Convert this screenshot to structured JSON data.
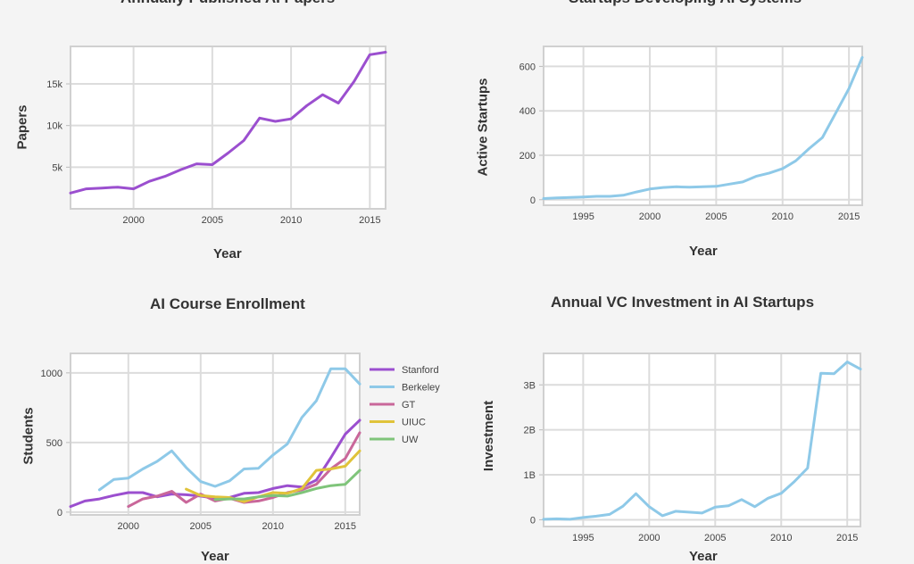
{
  "chart_data": [
    {
      "id": "papers",
      "type": "line",
      "title": "Annually Published AI Papers",
      "xlabel": "Year",
      "ylabel": "Papers",
      "xlim": [
        1996,
        2016
      ],
      "ylim": [
        0,
        19500
      ],
      "xticks": [
        2000,
        2005,
        2010,
        2015
      ],
      "xtick_labels": [
        "2000",
        "2005",
        "2010",
        "2015"
      ],
      "yticks": [
        5000,
        10000,
        15000
      ],
      "ytick_labels": [
        "5k",
        "10k",
        "15k"
      ],
      "x": [
        1996,
        1997,
        1998,
        1999,
        2000,
        2001,
        2002,
        2003,
        2004,
        2005,
        2006,
        2007,
        2008,
        2009,
        2010,
        2011,
        2012,
        2013,
        2014,
        2015,
        2016
      ],
      "series": [
        {
          "color": "#9b4fcf",
          "values": [
            1900,
            2400,
            2500,
            2600,
            2400,
            3300,
            3900,
            4700,
            5400,
            5300,
            6700,
            8200,
            10900,
            10500,
            10800,
            12400,
            13700,
            12700,
            15300,
            18500,
            18800
          ]
        }
      ]
    },
    {
      "id": "startups",
      "type": "line",
      "title": "Startups Developing AI Systems",
      "xlabel": "Year",
      "ylabel": "Active Startups",
      "xlim": [
        1992,
        2016
      ],
      "ylim": [
        -25,
        690
      ],
      "xticks": [
        1995,
        2000,
        2005,
        2010,
        2015
      ],
      "xtick_labels": [
        "1995",
        "2000",
        "2005",
        "2010",
        "2015"
      ],
      "yticks": [
        0,
        200,
        400,
        600
      ],
      "ytick_labels": [
        "0",
        "200",
        "400",
        "600"
      ],
      "x": [
        1992,
        1993,
        1994,
        1995,
        1996,
        1997,
        1998,
        1999,
        2000,
        2001,
        2002,
        2003,
        2004,
        2005,
        2006,
        2007,
        2008,
        2009,
        2010,
        2011,
        2012,
        2013,
        2014,
        2015,
        2016
      ],
      "series": [
        {
          "color": "#8ec9e8",
          "values": [
            5,
            8,
            10,
            12,
            15,
            15,
            20,
            35,
            48,
            55,
            58,
            56,
            58,
            60,
            70,
            80,
            105,
            120,
            140,
            175,
            230,
            280,
            390,
            500,
            640
          ]
        }
      ]
    },
    {
      "id": "enrollment",
      "type": "line",
      "title": "AI Course Enrollment",
      "xlabel": "Year",
      "ylabel": "Students",
      "xlim": [
        1996,
        2016
      ],
      "ylim": [
        -20,
        1140
      ],
      "xticks": [
        2000,
        2005,
        2010,
        2015
      ],
      "xtick_labels": [
        "2000",
        "2005",
        "2010",
        "2015"
      ],
      "yticks": [
        0,
        500,
        1000
      ],
      "ytick_labels": [
        "0",
        "500",
        "1000"
      ],
      "legend_position": "right",
      "series": [
        {
          "name": "Stanford",
          "color": "#9b4fcf",
          "x": [
            1996,
            1997,
            1998,
            1999,
            2000,
            2001,
            2002,
            2003,
            2004,
            2005,
            2006,
            2007,
            2008,
            2009,
            2010,
            2011,
            2012,
            2013,
            2014,
            2015,
            2016
          ],
          "values": [
            40,
            80,
            95,
            120,
            140,
            140,
            110,
            130,
            125,
            115,
            100,
            105,
            135,
            140,
            170,
            190,
            180,
            230,
            390,
            560,
            660
          ]
        },
        {
          "name": "Berkeley",
          "color": "#8ec9e8",
          "x": [
            1998,
            1999,
            2000,
            2001,
            2002,
            2003,
            2004,
            2005,
            2006,
            2007,
            2008,
            2009,
            2010,
            2011,
            2012,
            2013,
            2014,
            2015,
            2016
          ],
          "values": [
            160,
            235,
            245,
            310,
            365,
            440,
            320,
            220,
            185,
            225,
            310,
            315,
            410,
            490,
            680,
            800,
            1030,
            1030,
            920
          ]
        },
        {
          "name": "GT",
          "color": "#c9679a",
          "x": [
            2000,
            2001,
            2002,
            2003,
            2004,
            2005,
            2006,
            2007,
            2008,
            2009,
            2010,
            2011,
            2012,
            2013,
            2014,
            2015,
            2016
          ],
          "values": [
            40,
            95,
            115,
            150,
            70,
            130,
            80,
            100,
            70,
            80,
            105,
            140,
            160,
            200,
            310,
            385,
            570
          ]
        },
        {
          "name": "UIUC",
          "color": "#e0c33a",
          "x": [
            2004,
            2005,
            2006,
            2007,
            2008,
            2009,
            2010,
            2011,
            2012,
            2013,
            2014,
            2015,
            2016
          ],
          "values": [
            165,
            120,
            110,
            105,
            75,
            110,
            140,
            135,
            170,
            300,
            310,
            330,
            440
          ]
        },
        {
          "name": "UW",
          "color": "#7fc47a",
          "x": [
            2006,
            2007,
            2008,
            2009,
            2010,
            2011,
            2012,
            2013,
            2014,
            2015,
            2016
          ],
          "values": [
            90,
            95,
            95,
            110,
            120,
            115,
            140,
            170,
            190,
            200,
            300
          ]
        }
      ]
    },
    {
      "id": "vc",
      "type": "line",
      "title": "Annual VC Investment in AI Startups",
      "xlabel": "Year",
      "ylabel": "Investment",
      "xlim": [
        1992,
        2016
      ],
      "ylim": [
        -150000000,
        3700000000
      ],
      "xticks": [
        1995,
        2000,
        2005,
        2010,
        2015
      ],
      "xtick_labels": [
        "1995",
        "2000",
        "2005",
        "2010",
        "2015"
      ],
      "yticks": [
        0,
        1000000000,
        2000000000,
        3000000000
      ],
      "ytick_labels": [
        "0",
        "1B",
        "2B",
        "3B"
      ],
      "x": [
        1992,
        1993,
        1994,
        1995,
        1996,
        1997,
        1998,
        1999,
        2000,
        2001,
        2002,
        2003,
        2004,
        2005,
        2006,
        2007,
        2008,
        2009,
        2010,
        2011,
        2012,
        2013,
        2014,
        2015,
        2016
      ],
      "series": [
        {
          "color": "#8ec9e8",
          "values": [
            10000000,
            20000000,
            10000000,
            50000000,
            80000000,
            120000000,
            300000000,
            580000000,
            290000000,
            90000000,
            190000000,
            170000000,
            150000000,
            280000000,
            310000000,
            450000000,
            290000000,
            480000000,
            590000000,
            850000000,
            1150000000,
            3260000000,
            3250000000,
            3510000000,
            3350000000
          ]
        }
      ]
    }
  ]
}
